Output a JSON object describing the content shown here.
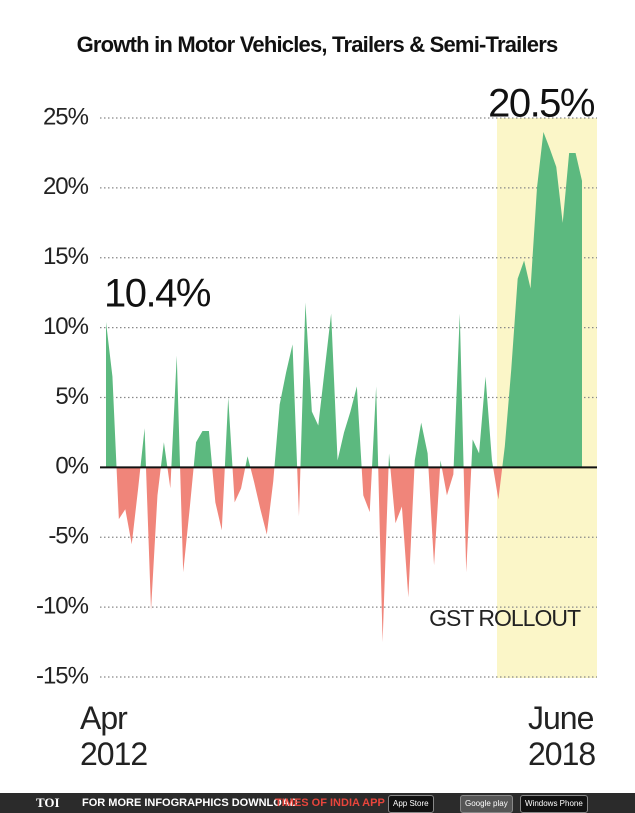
{
  "chart_data": {
    "type": "area",
    "title": "Growth in Motor Vehicles, Trailers & Semi-Trailers",
    "categories": [
      "Apr 2012",
      null,
      null,
      null,
      null,
      null,
      null,
      null,
      null,
      null,
      null,
      null,
      null,
      null,
      null,
      null,
      null,
      null,
      null,
      null,
      null,
      null,
      null,
      null,
      null,
      null,
      null,
      null,
      null,
      null,
      null,
      null,
      null,
      null,
      null,
      null,
      null,
      null,
      null,
      null,
      null,
      null,
      null,
      null,
      null,
      null,
      null,
      null,
      null,
      null,
      null,
      null,
      null,
      null,
      null,
      null,
      null,
      null,
      null,
      null,
      null,
      null,
      null,
      null,
      null,
      null,
      null,
      null,
      null,
      null,
      null,
      null,
      null,
      null,
      "June 2018"
    ],
    "values": [
      10.4,
      6.5,
      -3.7,
      -3,
      -5.5,
      -1.5,
      2.8,
      -10.2,
      -2,
      1.8,
      -1.5,
      8,
      -7.5,
      -3,
      1.8,
      2.6,
      2.6,
      -2.5,
      -4.5,
      5,
      -2.5,
      -1.5,
      0.8,
      -1,
      -3,
      -4.8,
      -1,
      4.5,
      6.8,
      8.8,
      -3.5,
      11.8,
      4,
      3,
      7,
      11,
      0.5,
      2.5,
      4,
      5.8,
      -2,
      -3.2,
      5.8,
      -12.5,
      1,
      -4,
      -2.8,
      -9.3,
      0.5,
      3.2,
      1,
      -7,
      0.5,
      -2,
      -0.5,
      11,
      -7.5,
      2,
      1,
      6.5,
      0.5,
      -2.3,
      1.5,
      7,
      13.5,
      14.8,
      12.8,
      20,
      24,
      22.8,
      21.5,
      17.5,
      22.5,
      22.5,
      20.5
    ],
    "value_labels": [
      "10.4%",
      null,
      null,
      null,
      null,
      null,
      null,
      null,
      null,
      null,
      null,
      null,
      null,
      null,
      null,
      null,
      null,
      null,
      null,
      null,
      null,
      null,
      null,
      null,
      null,
      null,
      null,
      null,
      null,
      null,
      null,
      null,
      null,
      null,
      null,
      null,
      null,
      null,
      null,
      null,
      null,
      null,
      null,
      null,
      null,
      null,
      null,
      null,
      null,
      null,
      null,
      null,
      null,
      null,
      null,
      null,
      null,
      null,
      null,
      null,
      null,
      null,
      null,
      null,
      null,
      null,
      null,
      null,
      null,
      null,
      null,
      null,
      null,
      null,
      "20.5%"
    ],
    "positive_color": "#5cb97f",
    "negative_color": "#f0857a",
    "annotation": "GST ROLLOUT",
    "ylim": [
      -15,
      25
    ],
    "yticks": [
      {
        "value": -15,
        "label": "-15%"
      },
      {
        "value": -10,
        "label": "-10%"
      },
      {
        "value": -5,
        "label": "-5%"
      },
      {
        "value": 0,
        "label": "0%"
      },
      {
        "value": 5,
        "label": "5%"
      },
      {
        "value": 10,
        "label": "10%"
      },
      {
        "value": 15,
        "label": "15%"
      },
      {
        "value": 20,
        "label": "20%"
      },
      {
        "value": 25,
        "label": "25%"
      }
    ],
    "grid": true
  },
  "footer": {
    "brand": "TOI",
    "text": "FOR MORE INFOGRAPHICS DOWNLOAD",
    "app": "TIMES OF INDIA APP",
    "store1": "App Store",
    "store2": "Google play",
    "store3": "Windows Phone"
  }
}
